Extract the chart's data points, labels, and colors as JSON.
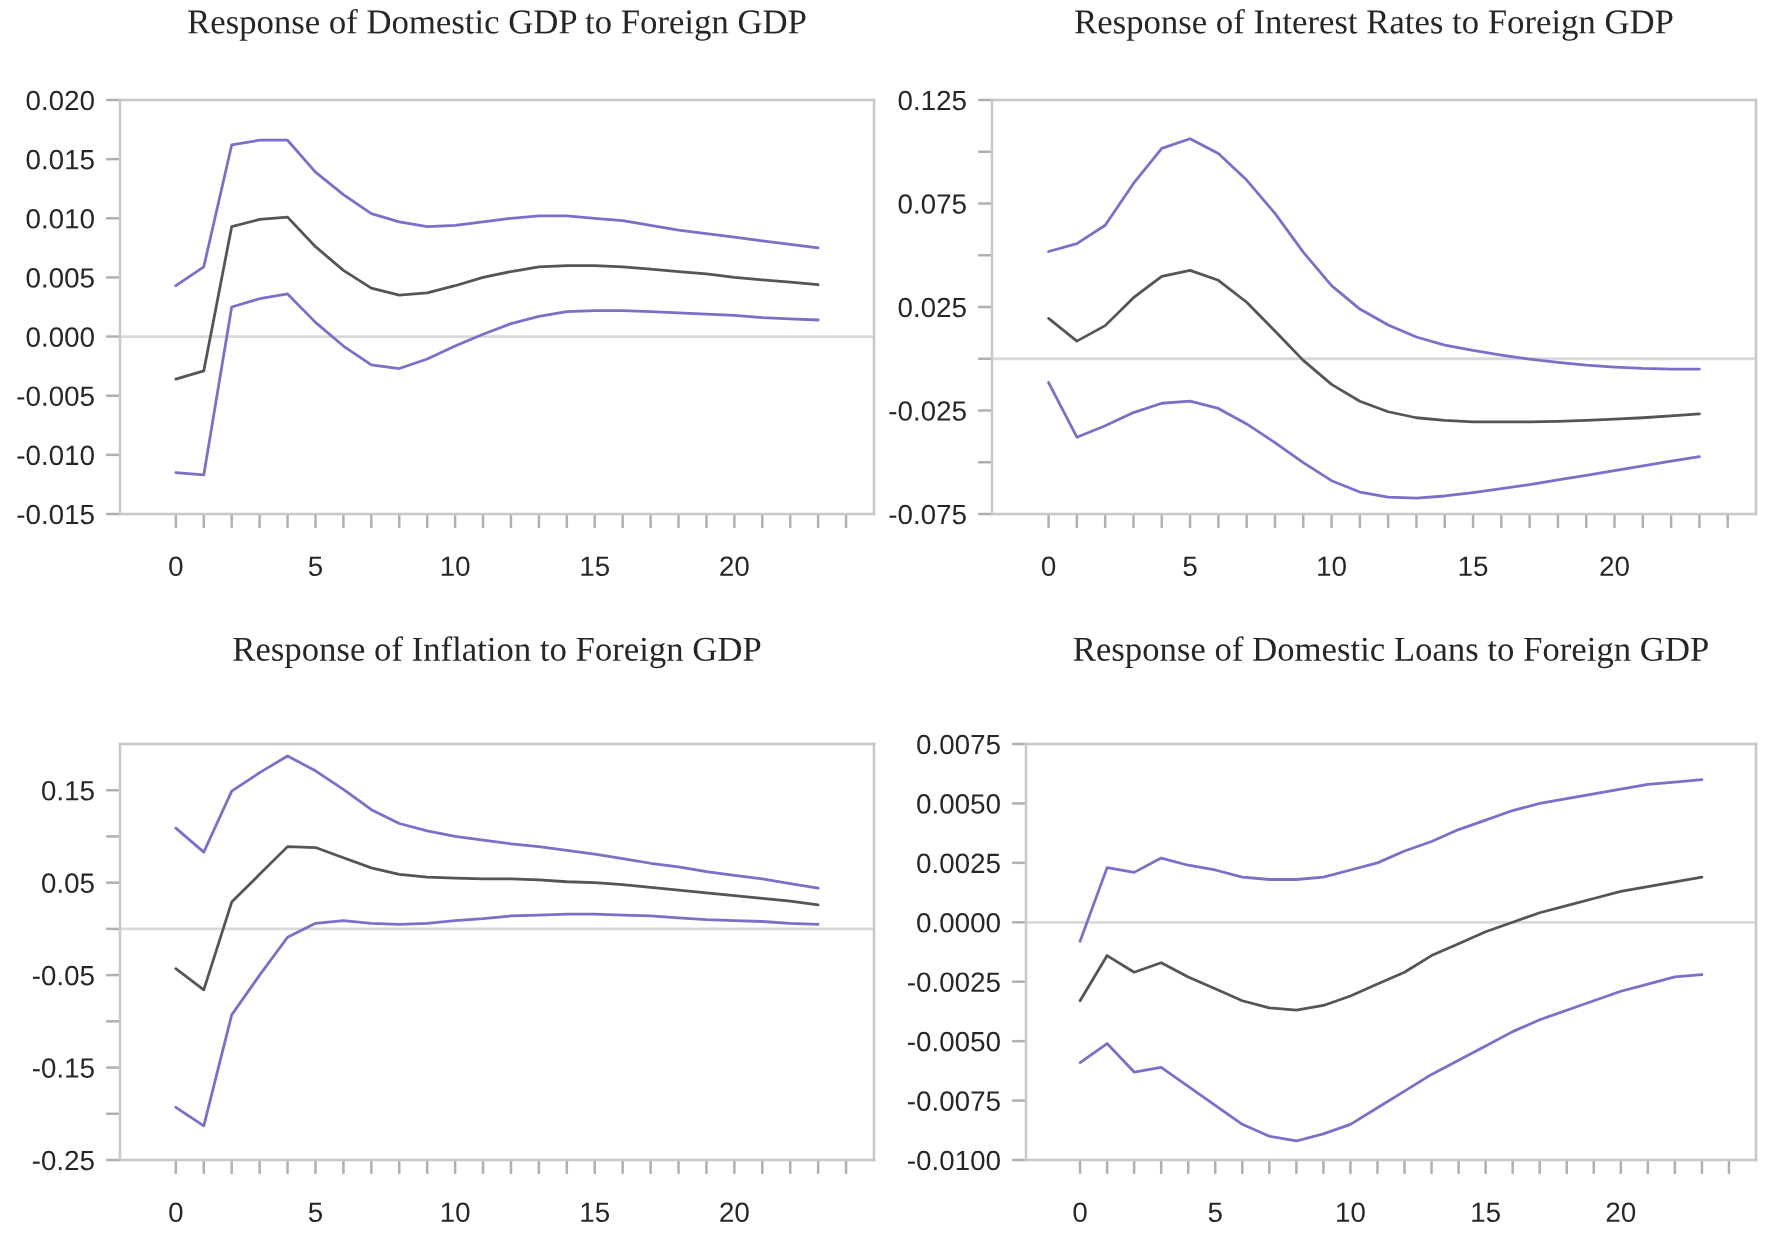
{
  "chart_data": [
    {
      "type": "line",
      "title": "Response of Domestic GDP to Foreign GDP",
      "x": [
        0,
        1,
        2,
        3,
        4,
        5,
        6,
        7,
        8,
        9,
        10,
        11,
        12,
        13,
        14,
        15,
        16,
        17,
        18,
        19,
        20,
        21,
        22,
        23
      ],
      "series": [
        {
          "color": "#7b6fc8",
          "values": [
            0.0043,
            0.0059,
            0.0162,
            0.0166,
            0.0166,
            0.0139,
            0.012,
            0.0104,
            0.0097,
            0.0093,
            0.0094,
            0.0097,
            0.01,
            0.0102,
            0.0102,
            0.01,
            0.0098,
            0.0094,
            0.009,
            0.0087,
            0.0084,
            0.0081,
            0.0078,
            0.0075
          ]
        },
        {
          "color": "#555555",
          "values": [
            -0.0036,
            -0.0029,
            0.0093,
            0.0099,
            0.0101,
            0.0076,
            0.0056,
            0.0041,
            0.0035,
            0.0037,
            0.0043,
            0.005,
            0.0055,
            0.0059,
            0.006,
            0.006,
            0.0059,
            0.0057,
            0.0055,
            0.0053,
            0.005,
            0.0048,
            0.0046,
            0.0044
          ]
        },
        {
          "color": "#7b6fc8",
          "values": [
            -0.0115,
            -0.0117,
            0.0025,
            0.0032,
            0.0036,
            0.0012,
            -0.0008,
            -0.0024,
            -0.0027,
            -0.0019,
            -0.0008,
            0.0002,
            0.0011,
            0.0017,
            0.0021,
            0.0022,
            0.0022,
            0.0021,
            0.002,
            0.0019,
            0.0018,
            0.0016,
            0.0015,
            0.0014
          ]
        }
      ],
      "xlim": [
        -2,
        25
      ],
      "ylim": [
        -0.015,
        0.02
      ],
      "xticks": [
        {
          "value": 0,
          "label": "0"
        },
        {
          "value": 1,
          "label": null
        },
        {
          "value": 2,
          "label": null
        },
        {
          "value": 3,
          "label": null
        },
        {
          "value": 4,
          "label": null
        },
        {
          "value": 5,
          "label": "5"
        },
        {
          "value": 6,
          "label": null
        },
        {
          "value": 7,
          "label": null
        },
        {
          "value": 8,
          "label": null
        },
        {
          "value": 9,
          "label": null
        },
        {
          "value": 10,
          "label": "10"
        },
        {
          "value": 11,
          "label": null
        },
        {
          "value": 12,
          "label": null
        },
        {
          "value": 13,
          "label": null
        },
        {
          "value": 14,
          "label": null
        },
        {
          "value": 15,
          "label": "15"
        },
        {
          "value": 16,
          "label": null
        },
        {
          "value": 17,
          "label": null
        },
        {
          "value": 18,
          "label": null
        },
        {
          "value": 19,
          "label": null
        },
        {
          "value": 20,
          "label": "20"
        },
        {
          "value": 21,
          "label": null
        },
        {
          "value": 22,
          "label": null
        },
        {
          "value": 23,
          "label": null
        },
        {
          "value": 24,
          "label": null
        }
      ],
      "yticks": [
        {
          "value": -0.015,
          "label": "-0.015"
        },
        {
          "value": -0.01,
          "label": "-0.010"
        },
        {
          "value": -0.005,
          "label": "-0.005"
        },
        {
          "value": 0,
          "label": "0.000"
        },
        {
          "value": 0.005,
          "label": "0.005"
        },
        {
          "value": 0.01,
          "label": "0.010"
        },
        {
          "value": 0.015,
          "label": "0.015"
        },
        {
          "value": 0.02,
          "label": "0.020"
        }
      ],
      "ref_lines": [
        {
          "axis": "y",
          "value": 0,
          "color": "#d9d9d9"
        }
      ]
    },
    {
      "type": "line",
      "title": "Response of Interest Rates to Foreign GDP",
      "x": [
        0,
        1,
        2,
        3,
        4,
        5,
        6,
        7,
        8,
        9,
        10,
        11,
        12,
        13,
        14,
        15,
        16,
        17,
        18,
        19,
        20,
        21,
        22,
        23
      ],
      "series": [
        {
          "color": "#7b6fc8",
          "values": [
            0.0518,
            0.0556,
            0.0645,
            0.0847,
            0.1016,
            0.1063,
            0.0992,
            0.0863,
            0.0702,
            0.0515,
            0.0353,
            0.024,
            0.0163,
            0.0105,
            0.0066,
            0.004,
            0.0018,
            -0.0002,
            -0.0018,
            -0.0031,
            -0.004,
            -0.0047,
            -0.005,
            -0.005
          ]
        },
        {
          "color": "#555555",
          "values": [
            0.0195,
            0.0085,
            0.016,
            0.0295,
            0.0398,
            0.0427,
            0.0379,
            0.0273,
            0.0134,
            -0.0008,
            -0.0124,
            -0.0205,
            -0.0256,
            -0.0285,
            -0.0298,
            -0.0305,
            -0.0305,
            -0.0305,
            -0.0302,
            -0.0298,
            -0.0292,
            -0.0285,
            -0.0276,
            -0.0266
          ]
        },
        {
          "color": "#7b6fc8",
          "values": [
            -0.0115,
            -0.0379,
            -0.0324,
            -0.026,
            -0.0215,
            -0.0205,
            -0.024,
            -0.0315,
            -0.0405,
            -0.0502,
            -0.0589,
            -0.0644,
            -0.0669,
            -0.0673,
            -0.0663,
            -0.0647,
            -0.0627,
            -0.0608,
            -0.0585,
            -0.0563,
            -0.054,
            -0.0518,
            -0.0495,
            -0.0473
          ]
        }
      ],
      "xlim": [
        -2,
        25
      ],
      "ylim": [
        -0.075,
        0.125
      ],
      "xticks": [
        {
          "value": 0,
          "label": "0"
        },
        {
          "value": 1,
          "label": null
        },
        {
          "value": 2,
          "label": null
        },
        {
          "value": 3,
          "label": null
        },
        {
          "value": 4,
          "label": null
        },
        {
          "value": 5,
          "label": "5"
        },
        {
          "value": 6,
          "label": null
        },
        {
          "value": 7,
          "label": null
        },
        {
          "value": 8,
          "label": null
        },
        {
          "value": 9,
          "label": null
        },
        {
          "value": 10,
          "label": "10"
        },
        {
          "value": 11,
          "label": null
        },
        {
          "value": 12,
          "label": null
        },
        {
          "value": 13,
          "label": null
        },
        {
          "value": 14,
          "label": null
        },
        {
          "value": 15,
          "label": "15"
        },
        {
          "value": 16,
          "label": null
        },
        {
          "value": 17,
          "label": null
        },
        {
          "value": 18,
          "label": null
        },
        {
          "value": 19,
          "label": null
        },
        {
          "value": 20,
          "label": "20"
        },
        {
          "value": 21,
          "label": null
        },
        {
          "value": 22,
          "label": null
        },
        {
          "value": 23,
          "label": null
        },
        {
          "value": 24,
          "label": null
        }
      ],
      "yticks": [
        {
          "value": -0.075,
          "label": "-0.075"
        },
        {
          "value": -0.05,
          "label": null
        },
        {
          "value": -0.025,
          "label": "-0.025"
        },
        {
          "value": 0,
          "label": null
        },
        {
          "value": 0.025,
          "label": "0.025"
        },
        {
          "value": 0.05,
          "label": null
        },
        {
          "value": 0.075,
          "label": "0.075"
        },
        {
          "value": 0.1,
          "label": null
        },
        {
          "value": 0.125,
          "label": "0.125"
        }
      ],
      "ref_lines": [
        {
          "axis": "y",
          "value": 0,
          "color": "#d9d9d9"
        }
      ]
    },
    {
      "type": "line",
      "title": "Response of Inflation to Foreign GDP",
      "x": [
        0,
        1,
        2,
        3,
        4,
        5,
        6,
        7,
        8,
        9,
        10,
        11,
        12,
        13,
        14,
        15,
        16,
        17,
        18,
        19,
        20,
        21,
        22,
        23
      ],
      "series": [
        {
          "color": "#7b6fc8",
          "values": [
            0.109,
            0.083,
            0.149,
            0.169,
            0.187,
            0.171,
            0.151,
            0.129,
            0.114,
            0.106,
            0.1,
            0.096,
            0.092,
            0.089,
            0.085,
            0.081,
            0.076,
            0.071,
            0.067,
            0.062,
            0.058,
            0.054,
            0.049,
            0.044
          ]
        },
        {
          "color": "#555555",
          "values": [
            -0.043,
            -0.066,
            0.029,
            0.059,
            0.089,
            0.088,
            0.077,
            0.066,
            0.059,
            0.056,
            0.055,
            0.054,
            0.054,
            0.053,
            0.051,
            0.05,
            0.048,
            0.045,
            0.042,
            0.039,
            0.036,
            0.033,
            0.03,
            0.026
          ]
        },
        {
          "color": "#7b6fc8",
          "values": [
            -0.193,
            -0.213,
            -0.093,
            -0.05,
            -0.009,
            0.006,
            0.009,
            0.006,
            0.005,
            0.006,
            0.009,
            0.011,
            0.014,
            0.015,
            0.016,
            0.016,
            0.015,
            0.014,
            0.012,
            0.01,
            0.009,
            0.008,
            0.006,
            0.005
          ]
        }
      ],
      "xlim": [
        -2,
        25
      ],
      "ylim": [
        -0.25,
        0.2
      ],
      "xticks": [
        {
          "value": 0,
          "label": "0"
        },
        {
          "value": 1,
          "label": null
        },
        {
          "value": 2,
          "label": null
        },
        {
          "value": 3,
          "label": null
        },
        {
          "value": 4,
          "label": null
        },
        {
          "value": 5,
          "label": "5"
        },
        {
          "value": 6,
          "label": null
        },
        {
          "value": 7,
          "label": null
        },
        {
          "value": 8,
          "label": null
        },
        {
          "value": 9,
          "label": null
        },
        {
          "value": 10,
          "label": "10"
        },
        {
          "value": 11,
          "label": null
        },
        {
          "value": 12,
          "label": null
        },
        {
          "value": 13,
          "label": null
        },
        {
          "value": 14,
          "label": null
        },
        {
          "value": 15,
          "label": "15"
        },
        {
          "value": 16,
          "label": null
        },
        {
          "value": 17,
          "label": null
        },
        {
          "value": 18,
          "label": null
        },
        {
          "value": 19,
          "label": null
        },
        {
          "value": 20,
          "label": "20"
        },
        {
          "value": 21,
          "label": null
        },
        {
          "value": 22,
          "label": null
        },
        {
          "value": 23,
          "label": null
        },
        {
          "value": 24,
          "label": null
        }
      ],
      "yticks": [
        {
          "value": -0.25,
          "label": "-0.25"
        },
        {
          "value": -0.2,
          "label": null
        },
        {
          "value": -0.15,
          "label": "-0.15"
        },
        {
          "value": -0.1,
          "label": null
        },
        {
          "value": -0.05,
          "label": "-0.05"
        },
        {
          "value": 0,
          "label": null
        },
        {
          "value": 0.05,
          "label": "0.05"
        },
        {
          "value": 0.1,
          "label": null
        },
        {
          "value": 0.15,
          "label": "0.15"
        }
      ],
      "ref_lines": [
        {
          "axis": "y",
          "value": 0,
          "color": "#d9d9d9"
        }
      ]
    },
    {
      "type": "line",
      "title": "Response of Domestic Loans to Foreign GDP",
      "x": [
        0,
        1,
        2,
        3,
        4,
        5,
        6,
        7,
        8,
        9,
        10,
        11,
        12,
        13,
        14,
        15,
        16,
        17,
        18,
        19,
        20,
        21,
        22,
        23
      ],
      "series": [
        {
          "color": "#7b6fc8",
          "values": [
            -0.0008,
            0.0023,
            0.0021,
            0.0027,
            0.0024,
            0.0022,
            0.0019,
            0.0018,
            0.0018,
            0.0019,
            0.0022,
            0.0025,
            0.003,
            0.0034,
            0.0039,
            0.0043,
            0.0047,
            0.005,
            0.0052,
            0.0054,
            0.0056,
            0.0058,
            0.0059,
            0.006
          ]
        },
        {
          "color": "#555555",
          "values": [
            -0.0033,
            -0.0014,
            -0.0021,
            -0.0017,
            -0.0023,
            -0.0028,
            -0.0033,
            -0.0036,
            -0.0037,
            -0.0035,
            -0.0031,
            -0.0026,
            -0.0021,
            -0.0014,
            -0.0009,
            -0.0004,
            0.0,
            0.0004,
            0.0007,
            0.001,
            0.0013,
            0.0015,
            0.0017,
            0.0019
          ]
        },
        {
          "color": "#7b6fc8",
          "values": [
            -0.0059,
            -0.0051,
            -0.0063,
            -0.0061,
            -0.0069,
            -0.0077,
            -0.0085,
            -0.009,
            -0.0092,
            -0.0089,
            -0.0085,
            -0.0078,
            -0.0071,
            -0.0064,
            -0.0058,
            -0.0052,
            -0.0046,
            -0.0041,
            -0.0037,
            -0.0033,
            -0.0029,
            -0.0026,
            -0.0023,
            -0.0022
          ]
        }
      ],
      "xlim": [
        -2,
        25
      ],
      "ylim": [
        -0.01,
        0.0075
      ],
      "xticks": [
        {
          "value": 0,
          "label": "0"
        },
        {
          "value": 1,
          "label": null
        },
        {
          "value": 2,
          "label": null
        },
        {
          "value": 3,
          "label": null
        },
        {
          "value": 4,
          "label": null
        },
        {
          "value": 5,
          "label": "5"
        },
        {
          "value": 6,
          "label": null
        },
        {
          "value": 7,
          "label": null
        },
        {
          "value": 8,
          "label": null
        },
        {
          "value": 9,
          "label": null
        },
        {
          "value": 10,
          "label": "10"
        },
        {
          "value": 11,
          "label": null
        },
        {
          "value": 12,
          "label": null
        },
        {
          "value": 13,
          "label": null
        },
        {
          "value": 14,
          "label": null
        },
        {
          "value": 15,
          "label": "15"
        },
        {
          "value": 16,
          "label": null
        },
        {
          "value": 17,
          "label": null
        },
        {
          "value": 18,
          "label": null
        },
        {
          "value": 19,
          "label": null
        },
        {
          "value": 20,
          "label": "20"
        },
        {
          "value": 21,
          "label": null
        },
        {
          "value": 22,
          "label": null
        },
        {
          "value": 23,
          "label": null
        },
        {
          "value": 24,
          "label": null
        }
      ],
      "yticks": [
        {
          "value": -0.01,
          "label": "-0.0100"
        },
        {
          "value": -0.0075,
          "label": "-0.0075"
        },
        {
          "value": -0.005,
          "label": "-0.0050"
        },
        {
          "value": -0.0025,
          "label": "-0.0025"
        },
        {
          "value": 0,
          "label": "0.0000"
        },
        {
          "value": 0.0025,
          "label": "0.0025"
        },
        {
          "value": 0.005,
          "label": "0.0050"
        },
        {
          "value": 0.0075,
          "label": "0.0075"
        }
      ],
      "ref_lines": [
        {
          "axis": "y",
          "value": 0,
          "color": "#d9d9d9"
        }
      ]
    }
  ]
}
